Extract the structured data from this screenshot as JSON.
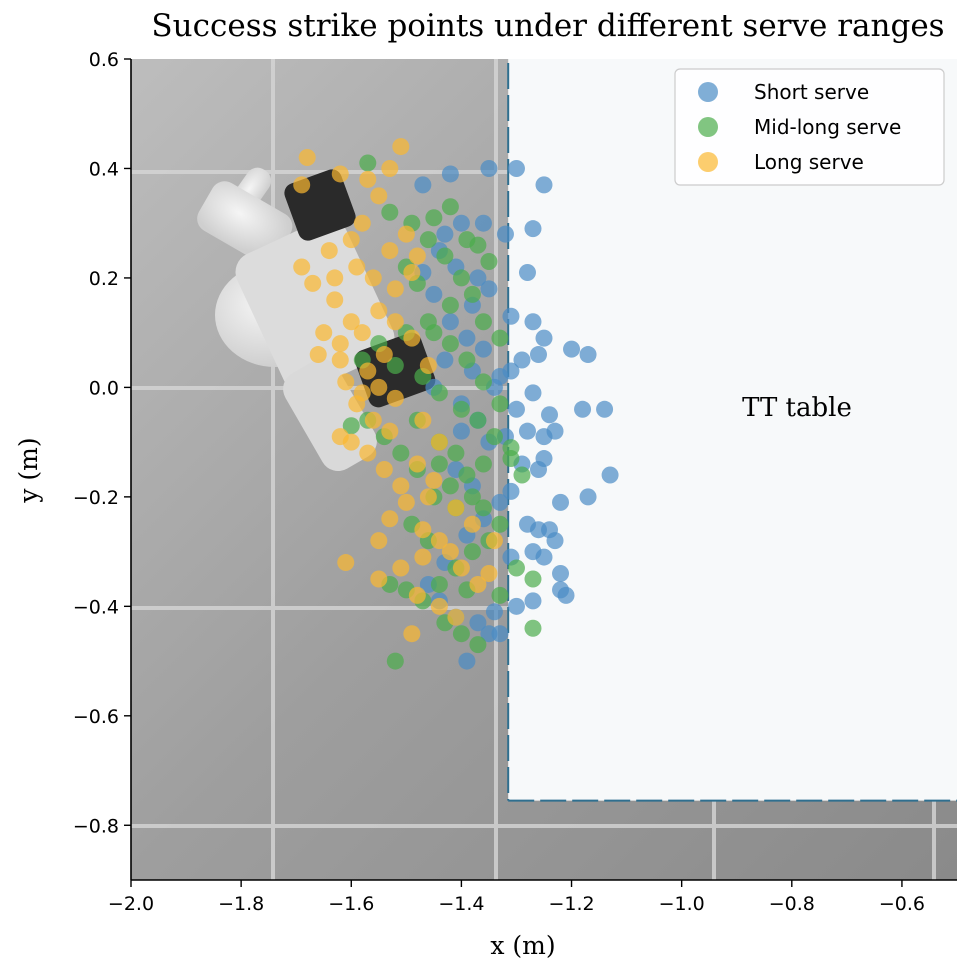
{
  "chart_data": {
    "type": "scatter",
    "title": "Success strike points under different serve ranges",
    "xlabel": "x (m)",
    "ylabel": "y (m)",
    "xlim": [
      -2.0,
      -0.5
    ],
    "ylim": [
      -0.9,
      0.6
    ],
    "xticks": [
      "−2.0",
      "−1.8",
      "−1.6",
      "−1.4",
      "−1.2",
      "−1.0",
      "−0.8",
      "−0.6"
    ],
    "xtick_values": [
      -2.0,
      -1.8,
      -1.6,
      -1.4,
      -1.2,
      -1.0,
      -0.8,
      -0.6
    ],
    "yticks": [
      "−0.8",
      "−0.6",
      "−0.4",
      "−0.2",
      "0.0",
      "0.2",
      "0.4",
      "0.6"
    ],
    "ytick_values": [
      -0.8,
      -0.6,
      -0.4,
      -0.2,
      0.0,
      0.2,
      0.4,
      0.6
    ],
    "grid": false,
    "legend_position": "top-right",
    "annotation": "TT table",
    "table_region": {
      "x_min": -1.315,
      "x_max": -0.5,
      "y_min": -0.755,
      "y_max": 0.6
    },
    "series": [
      {
        "name": "Short serve",
        "color": "#4a8cc4",
        "points": [
          [
            -1.32,
            0.28
          ],
          [
            -1.27,
            0.29
          ],
          [
            -1.25,
            0.37
          ],
          [
            -1.3,
            0.4
          ],
          [
            -1.35,
            0.4
          ],
          [
            -1.42,
            0.39
          ],
          [
            -1.47,
            0.37
          ],
          [
            -1.4,
            0.3
          ],
          [
            -1.36,
            0.3
          ],
          [
            -1.28,
            0.21
          ],
          [
            -1.31,
            0.13
          ],
          [
            -1.27,
            0.12
          ],
          [
            -1.25,
            0.09
          ],
          [
            -1.26,
            0.06
          ],
          [
            -1.29,
            0.05
          ],
          [
            -1.31,
            0.03
          ],
          [
            -1.2,
            0.07
          ],
          [
            -1.17,
            0.06
          ],
          [
            -1.33,
            0.02
          ],
          [
            -1.36,
            0.07
          ],
          [
            -1.39,
            0.09
          ],
          [
            -1.42,
            0.12
          ],
          [
            -1.38,
            0.15
          ],
          [
            -1.35,
            0.18
          ],
          [
            -1.44,
            0.25
          ],
          [
            -1.41,
            0.22
          ],
          [
            -1.37,
            0.2
          ],
          [
            -1.27,
            -0.01
          ],
          [
            -1.3,
            -0.04
          ],
          [
            -1.24,
            -0.05
          ],
          [
            -1.28,
            -0.08
          ],
          [
            -1.32,
            -0.09
          ],
          [
            -1.25,
            -0.09
          ],
          [
            -1.23,
            -0.08
          ],
          [
            -1.18,
            -0.04
          ],
          [
            -1.14,
            -0.04
          ],
          [
            -1.13,
            -0.16
          ],
          [
            -1.17,
            -0.2
          ],
          [
            -1.22,
            -0.21
          ],
          [
            -1.26,
            -0.15
          ],
          [
            -1.25,
            -0.13
          ],
          [
            -1.29,
            -0.14
          ],
          [
            -1.31,
            -0.19
          ],
          [
            -1.28,
            -0.25
          ],
          [
            -1.26,
            -0.26
          ],
          [
            -1.24,
            -0.26
          ],
          [
            -1.23,
            -0.28
          ],
          [
            -1.27,
            -0.3
          ],
          [
            -1.31,
            -0.31
          ],
          [
            -1.25,
            -0.31
          ],
          [
            -1.22,
            -0.34
          ],
          [
            -1.22,
            -0.37
          ],
          [
            -1.21,
            -0.38
          ],
          [
            -1.27,
            -0.39
          ],
          [
            -1.3,
            -0.4
          ],
          [
            -1.34,
            -0.41
          ],
          [
            -1.37,
            -0.43
          ],
          [
            -1.35,
            -0.45
          ],
          [
            -1.33,
            -0.45
          ],
          [
            -1.39,
            -0.5
          ],
          [
            -1.41,
            -0.42
          ],
          [
            -1.44,
            -0.39
          ],
          [
            -1.46,
            -0.36
          ],
          [
            -1.43,
            -0.32
          ],
          [
            -1.39,
            -0.27
          ],
          [
            -1.36,
            -0.24
          ],
          [
            -1.33,
            -0.21
          ],
          [
            -1.38,
            -0.18
          ],
          [
            -1.41,
            -0.15
          ],
          [
            -1.35,
            -0.1
          ],
          [
            -1.37,
            -0.06
          ],
          [
            -1.4,
            -0.03
          ],
          [
            -1.34,
            0.0
          ],
          [
            -1.38,
            0.03
          ],
          [
            -1.43,
            0.05
          ],
          [
            -1.45,
            0.0
          ],
          [
            -1.4,
            -0.08
          ],
          [
            -1.45,
            0.17
          ],
          [
            -1.47,
            0.21
          ],
          [
            -1.43,
            0.28
          ]
        ]
      },
      {
        "name": "Mid-long serve",
        "color": "#4cac4c",
        "points": [
          [
            -1.57,
            0.41
          ],
          [
            -1.53,
            0.32
          ],
          [
            -1.49,
            0.3
          ],
          [
            -1.46,
            0.27
          ],
          [
            -1.43,
            0.24
          ],
          [
            -1.4,
            0.2
          ],
          [
            -1.37,
            0.26
          ],
          [
            -1.35,
            0.23
          ],
          [
            -1.38,
            0.17
          ],
          [
            -1.42,
            0.15
          ],
          [
            -1.46,
            0.12
          ],
          [
            -1.5,
            0.1
          ],
          [
            -1.55,
            0.08
          ],
          [
            -1.58,
            0.05
          ],
          [
            -1.52,
            0.04
          ],
          [
            -1.47,
            0.02
          ],
          [
            -1.44,
            -0.01
          ],
          [
            -1.4,
            -0.04
          ],
          [
            -1.37,
            -0.06
          ],
          [
            -1.34,
            -0.09
          ],
          [
            -1.31,
            -0.11
          ],
          [
            -1.36,
            -0.14
          ],
          [
            -1.39,
            -0.16
          ],
          [
            -1.42,
            -0.18
          ],
          [
            -1.45,
            -0.2
          ],
          [
            -1.48,
            -0.15
          ],
          [
            -1.51,
            -0.12
          ],
          [
            -1.54,
            -0.09
          ],
          [
            -1.57,
            -0.06
          ],
          [
            -1.6,
            -0.07
          ],
          [
            -1.48,
            -0.06
          ],
          [
            -1.44,
            -0.1
          ],
          [
            -1.41,
            -0.12
          ],
          [
            -1.38,
            -0.2
          ],
          [
            -1.36,
            -0.22
          ],
          [
            -1.33,
            -0.25
          ],
          [
            -1.35,
            -0.28
          ],
          [
            -1.38,
            -0.3
          ],
          [
            -1.41,
            -0.33
          ],
          [
            -1.44,
            -0.36
          ],
          [
            -1.47,
            -0.39
          ],
          [
            -1.5,
            -0.37
          ],
          [
            -1.53,
            -0.36
          ],
          [
            -1.43,
            -0.43
          ],
          [
            -1.4,
            -0.45
          ],
          [
            -1.37,
            -0.47
          ],
          [
            -1.52,
            -0.5
          ],
          [
            -1.27,
            -0.44
          ],
          [
            -1.27,
            -0.35
          ],
          [
            -1.3,
            -0.33
          ],
          [
            -1.33,
            -0.38
          ],
          [
            -1.29,
            -0.16
          ],
          [
            -1.31,
            -0.13
          ],
          [
            -1.33,
            -0.03
          ],
          [
            -1.36,
            0.01
          ],
          [
            -1.39,
            0.05
          ],
          [
            -1.42,
            0.08
          ],
          [
            -1.45,
            0.1
          ],
          [
            -1.48,
            0.19
          ],
          [
            -1.5,
            0.22
          ],
          [
            -1.45,
            0.31
          ],
          [
            -1.42,
            0.33
          ],
          [
            -1.39,
            0.27
          ],
          [
            -1.36,
            0.12
          ],
          [
            -1.33,
            0.09
          ],
          [
            -1.46,
            -0.28
          ],
          [
            -1.49,
            -0.25
          ],
          [
            -1.44,
            -0.14
          ],
          [
            -1.41,
            -0.22
          ],
          [
            -1.39,
            -0.37
          ]
        ]
      },
      {
        "name": "Long serve",
        "color": "#fbb830",
        "points": [
          [
            -1.68,
            0.42
          ],
          [
            -1.69,
            0.37
          ],
          [
            -1.51,
            0.44
          ],
          [
            -1.53,
            0.4
          ],
          [
            -1.57,
            0.38
          ],
          [
            -1.62,
            0.39
          ],
          [
            -1.55,
            0.35
          ],
          [
            -1.58,
            0.3
          ],
          [
            -1.6,
            0.27
          ],
          [
            -1.64,
            0.25
          ],
          [
            -1.69,
            0.22
          ],
          [
            -1.67,
            0.19
          ],
          [
            -1.63,
            0.16
          ],
          [
            -1.6,
            0.12
          ],
          [
            -1.65,
            0.1
          ],
          [
            -1.62,
            0.08
          ],
          [
            -1.58,
            0.1
          ],
          [
            -1.55,
            0.14
          ],
          [
            -1.52,
            0.18
          ],
          [
            -1.49,
            0.21
          ],
          [
            -1.53,
            0.25
          ],
          [
            -1.5,
            0.28
          ],
          [
            -1.48,
            0.24
          ],
          [
            -1.54,
            0.06
          ],
          [
            -1.57,
            0.03
          ],
          [
            -1.61,
            0.01
          ],
          [
            -1.59,
            -0.03
          ],
          [
            -1.56,
            -0.06
          ],
          [
            -1.6,
            -0.1
          ],
          [
            -1.62,
            -0.09
          ],
          [
            -1.57,
            -0.12
          ],
          [
            -1.54,
            -0.15
          ],
          [
            -1.51,
            -0.18
          ],
          [
            -1.48,
            -0.14
          ],
          [
            -1.45,
            -0.17
          ],
          [
            -1.5,
            -0.21
          ],
          [
            -1.53,
            -0.24
          ],
          [
            -1.47,
            -0.26
          ],
          [
            -1.44,
            -0.28
          ],
          [
            -1.42,
            -0.3
          ],
          [
            -1.47,
            -0.31
          ],
          [
            -1.51,
            -0.33
          ],
          [
            -1.55,
            -0.28
          ],
          [
            -1.61,
            -0.32
          ],
          [
            -1.55,
            -0.35
          ],
          [
            -1.48,
            -0.38
          ],
          [
            -1.44,
            -0.4
          ],
          [
            -1.41,
            -0.42
          ],
          [
            -1.49,
            -0.45
          ],
          [
            -1.37,
            -0.36
          ],
          [
            -1.35,
            -0.34
          ],
          [
            -1.4,
            -0.33
          ],
          [
            -1.34,
            -0.28
          ],
          [
            -1.38,
            -0.25
          ],
          [
            -1.41,
            -0.22
          ],
          [
            -1.44,
            -0.1
          ],
          [
            -1.47,
            -0.06
          ],
          [
            -1.52,
            -0.02
          ],
          [
            -1.55,
            0.0
          ],
          [
            -1.58,
            -0.01
          ],
          [
            -1.62,
            0.05
          ],
          [
            -1.66,
            0.06
          ],
          [
            -1.52,
            0.12
          ],
          [
            -1.49,
            0.09
          ],
          [
            -1.46,
            0.04
          ],
          [
            -1.56,
            0.2
          ],
          [
            -1.59,
            0.22
          ],
          [
            -1.63,
            0.2
          ],
          [
            -1.53,
            -0.08
          ],
          [
            -1.46,
            -0.2
          ]
        ]
      }
    ]
  }
}
